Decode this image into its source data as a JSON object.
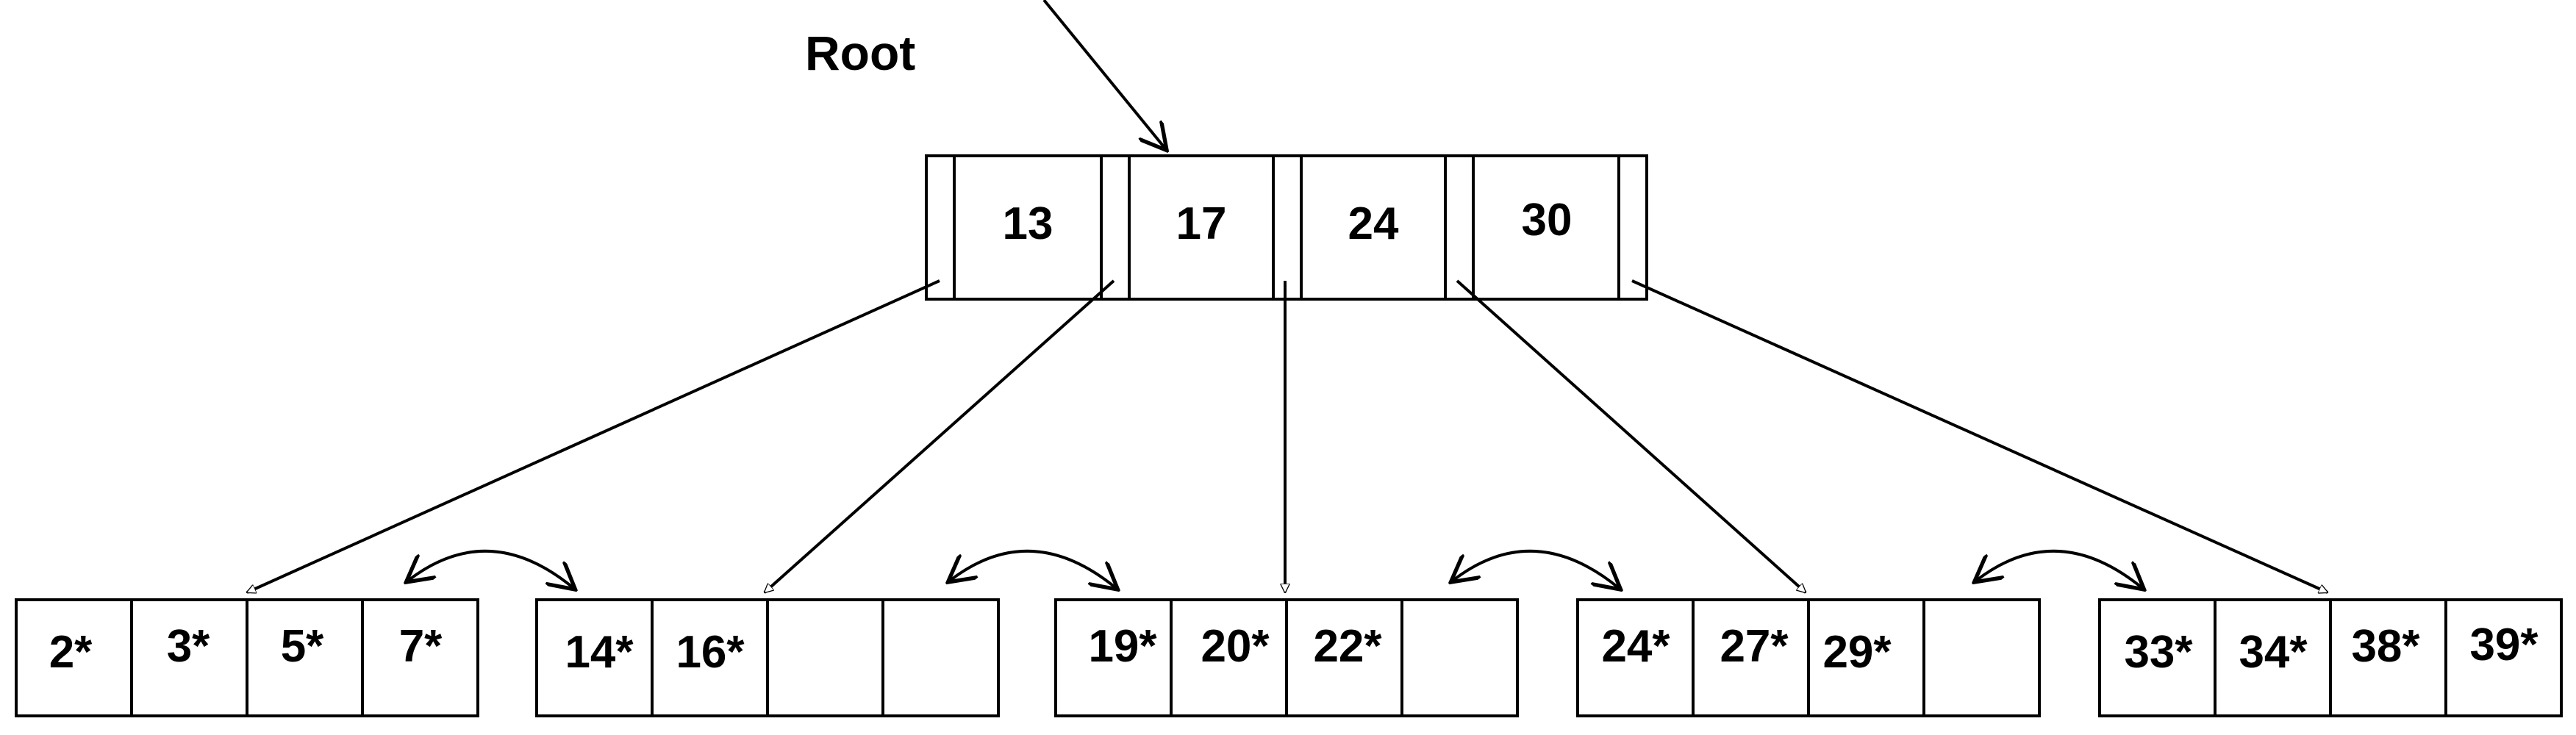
{
  "diagram": {
    "root_label": "Root",
    "root_node": {
      "keys": [
        "13",
        "17",
        "24",
        "30"
      ]
    },
    "leaves": [
      {
        "entries": [
          "2*",
          "3*",
          "5*",
          "7*"
        ]
      },
      {
        "entries": [
          "14*",
          "16*",
          "",
          ""
        ]
      },
      {
        "entries": [
          "19*",
          "20*",
          "22*",
          ""
        ]
      },
      {
        "entries": [
          "24*",
          "27*",
          "29*",
          ""
        ]
      },
      {
        "entries": [
          "33*",
          "34*",
          "38*",
          "39*"
        ]
      }
    ]
  }
}
